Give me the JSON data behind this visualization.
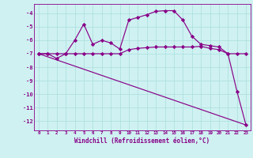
{
  "xlabel": "Windchill (Refroidissement éolien,°C)",
  "background_color": "#cff1f1",
  "grid_color": "#aadddd",
  "line_color": "#880088",
  "xlim": [
    -0.5,
    23.5
  ],
  "ylim": [
    -12.7,
    -3.3
  ],
  "yticks": [
    -12,
    -11,
    -10,
    -9,
    -8,
    -7,
    -6,
    -5,
    -4
  ],
  "xticks": [
    0,
    1,
    2,
    3,
    4,
    5,
    6,
    7,
    8,
    9,
    10,
    11,
    12,
    13,
    14,
    15,
    16,
    17,
    18,
    19,
    20,
    21,
    22,
    23
  ],
  "line1_x": [
    0,
    1,
    2,
    3,
    4,
    5,
    6,
    7,
    8,
    9,
    10,
    11,
    12,
    13,
    14,
    15,
    16,
    17,
    18,
    19,
    20,
    21,
    22,
    23
  ],
  "line1_y": [
    -7.0,
    -7.0,
    -7.35,
    -7.0,
    -6.0,
    -4.8,
    -6.3,
    -6.0,
    -6.2,
    -6.65,
    -4.5,
    -4.3,
    -4.1,
    -3.85,
    -3.8,
    -3.8,
    -4.5,
    -5.7,
    -6.3,
    -6.4,
    -6.5,
    -7.0,
    -9.8,
    -12.3
  ],
  "line2_x": [
    0,
    1,
    2,
    3,
    4,
    5,
    6,
    7,
    8,
    9,
    10,
    11,
    12,
    13,
    14,
    15,
    16,
    17,
    18,
    19,
    20,
    21,
    22,
    23
  ],
  "line2_y": [
    -7.0,
    -7.0,
    -7.0,
    -7.0,
    -7.0,
    -7.0,
    -7.0,
    -7.0,
    -7.0,
    -7.0,
    -6.7,
    -6.6,
    -6.55,
    -6.5,
    -6.5,
    -6.5,
    -6.5,
    -6.5,
    -6.45,
    -6.6,
    -6.7,
    -7.0,
    -7.0,
    -7.0
  ],
  "line3_x": [
    0,
    23
  ],
  "line3_y": [
    -7.0,
    -12.3
  ],
  "marker": "D",
  "marker_size": 2.2,
  "linewidth": 0.85
}
